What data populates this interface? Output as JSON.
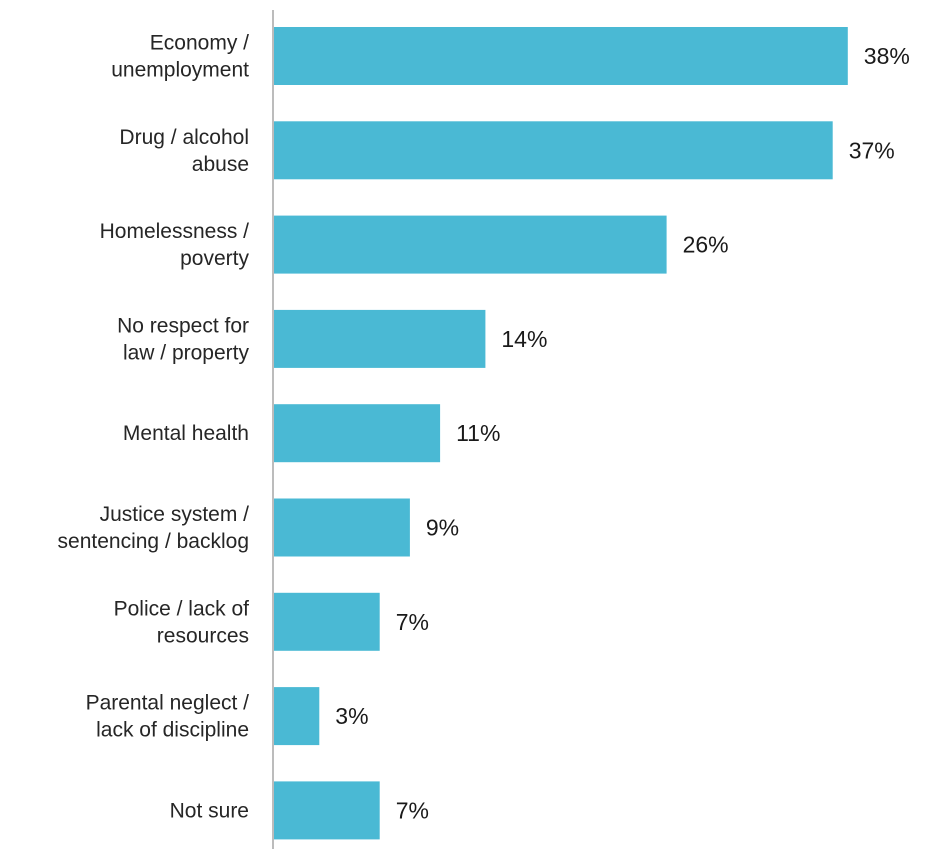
{
  "chart_data": {
    "type": "bar",
    "orientation": "horizontal",
    "categories": [
      [
        "Economy /",
        "unemployment"
      ],
      [
        "Drug / alcohol",
        "abuse"
      ],
      [
        "Homelessness /",
        "poverty"
      ],
      [
        "No respect for",
        "law / property"
      ],
      [
        "Mental health"
      ],
      [
        "Justice system /",
        "sentencing / backlog"
      ],
      [
        "Police / lack of",
        "resources"
      ],
      [
        "Parental neglect /",
        "lack of discipline"
      ],
      [
        "Not sure"
      ]
    ],
    "values": [
      38,
      37,
      26,
      14,
      11,
      9,
      7,
      3,
      7
    ],
    "value_labels": [
      "38%",
      "37%",
      "26%",
      "14%",
      "11%",
      "9%",
      "7%",
      "3%",
      "7%"
    ],
    "title": "",
    "xlabel": "",
    "ylabel": "",
    "xlim": [
      0,
      40
    ],
    "grid": false,
    "legend": "none",
    "bar_color": "#4ab9d4",
    "axis_color": "#a6a6a6"
  }
}
